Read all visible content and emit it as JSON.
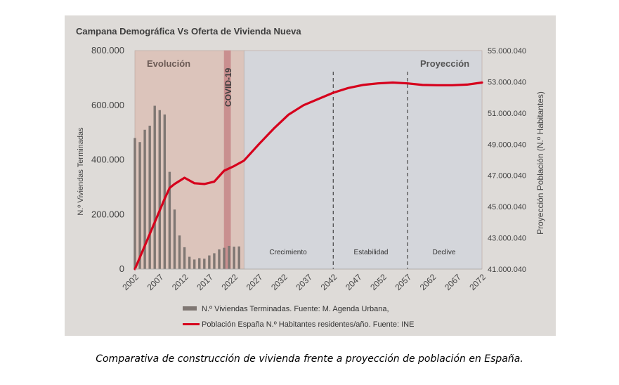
{
  "caption": "Comparativa de construcción de vivienda frente a proyección de población en España.",
  "chart_data": {
    "type": "bar+line",
    "title": "Campana Demográfica Vs Oferta de Vivienda Nueva",
    "ylabel_left": "N.º Viviendas Terminadas",
    "ylabel_right": "Proyección Población (N.º Habitantes)",
    "xlim": [
      2002,
      2072
    ],
    "ylim_left": [
      0,
      800000
    ],
    "ylim_right": [
      41000040,
      55000040
    ],
    "x_ticks": [
      "2002",
      "2007",
      "2012",
      "2017",
      "2022",
      "2027",
      "2032",
      "2037",
      "2042",
      "2047",
      "2052",
      "2057",
      "2062",
      "2067",
      "2072"
    ],
    "y_ticks_left": [
      "0",
      "200.000",
      "400.000",
      "600.000",
      "800.000"
    ],
    "y_ticks_right": [
      "41.000.040",
      "43.000.040",
      "45.000.040",
      "47.000.040",
      "49.000.040",
      "51.000.040",
      "53.000.040",
      "55.000.040"
    ],
    "regions": [
      {
        "label": "Evolución",
        "from": 2002,
        "to": 2024,
        "color": "#dcc4bb"
      },
      {
        "label": "COVID-19",
        "from": 2020,
        "to": 2021.3,
        "color": "#c98f8f"
      },
      {
        "label": "Proyección",
        "from": 2024,
        "to": 2072,
        "color": "#d4d6db"
      }
    ],
    "phases": [
      {
        "label": "Crecimiento",
        "from": 2024,
        "to": 2042
      },
      {
        "label": "Estabilidad",
        "from": 2042,
        "to": 2057
      },
      {
        "label": "Declive",
        "from": 2057,
        "to": 2072
      }
    ],
    "dividers": [
      2042,
      2057
    ],
    "series": [
      {
        "name": "N.º Viviendas Terminadas. Fuente: M. Agenda Urbana,",
        "type": "bar",
        "color": "#7f7773",
        "x": [
          2002,
          2003,
          2004,
          2005,
          2006,
          2007,
          2008,
          2009,
          2010,
          2011,
          2012,
          2013,
          2014,
          2015,
          2016,
          2017,
          2018,
          2019,
          2020,
          2021,
          2022,
          2023
        ],
        "values": [
          480000,
          465000,
          510000,
          525000,
          598000,
          582000,
          566000,
          356000,
          218000,
          123000,
          80000,
          45000,
          35000,
          40000,
          38000,
          50000,
          58000,
          72000,
          78000,
          85000,
          82000,
          83000
        ]
      },
      {
        "name": "Población España N.º Habitantes residentes/año. Fuente: INE",
        "type": "line",
        "color": "#d6001c",
        "x": [
          2002,
          2004,
          2006,
          2008,
          2009,
          2010,
          2012,
          2014,
          2016,
          2018,
          2020,
          2021,
          2022,
          2024,
          2027,
          2030,
          2033,
          2036,
          2039,
          2042,
          2045,
          2048,
          2051,
          2054,
          2057,
          2060,
          2063,
          2066,
          2069,
          2072
        ],
        "values": [
          41000040,
          42500040,
          44000040,
          45500040,
          46200040,
          46450040,
          46850040,
          46500040,
          46450040,
          46600040,
          47300040,
          47450040,
          47600040,
          47950040,
          49000040,
          50000040,
          50900040,
          51500040,
          51900040,
          52300040,
          52600040,
          52800040,
          52900040,
          52950040,
          52900040,
          52800040,
          52780040,
          52780040,
          52820040,
          52950040
        ]
      }
    ]
  }
}
